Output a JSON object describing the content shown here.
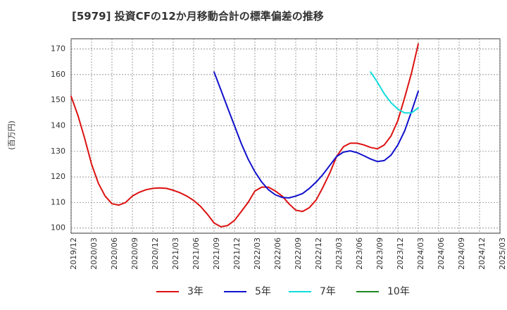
{
  "chart_data": {
    "type": "line",
    "title": "[5979]  投資CFの12か月移動合計の標準偏差の推移",
    "ylabel": "(百万円)",
    "xlabel": "",
    "ylim": [
      98,
      174
    ],
    "yticks": [
      100,
      110,
      120,
      130,
      140,
      150,
      160,
      170
    ],
    "xticks": [
      "2019/12",
      "2020/03",
      "2020/06",
      "2020/09",
      "2020/12",
      "2021/03",
      "2021/06",
      "2021/09",
      "2021/12",
      "2022/03",
      "2022/06",
      "2022/09",
      "2022/12",
      "2023/03",
      "2023/06",
      "2023/09",
      "2023/12",
      "2024/03",
      "2024/06",
      "2024/09",
      "2024/12",
      "2025/03"
    ],
    "grid": true,
    "legend_position": "bottom",
    "series": [
      {
        "name": "3年",
        "color": "#dd1111",
        "x": [
          "2019/12",
          "2020/01",
          "2020/02",
          "2020/03",
          "2020/04",
          "2020/05",
          "2020/06",
          "2020/07",
          "2020/08",
          "2020/09",
          "2020/10",
          "2020/11",
          "2020/12",
          "2021/01",
          "2021/02",
          "2021/03",
          "2021/04",
          "2021/05",
          "2021/06",
          "2021/07",
          "2021/08",
          "2021/09",
          "2021/10",
          "2021/11",
          "2021/12",
          "2022/01",
          "2022/02",
          "2022/03",
          "2022/04",
          "2022/05",
          "2022/06",
          "2022/07",
          "2022/08",
          "2022/09",
          "2022/10",
          "2022/11",
          "2022/12",
          "2023/01",
          "2023/02",
          "2023/03",
          "2023/04",
          "2023/05",
          "2023/06",
          "2023/07",
          "2023/08",
          "2023/09",
          "2023/10",
          "2023/11",
          "2023/12",
          "2024/01",
          "2024/02",
          "2024/03"
        ],
        "values": [
          151.5,
          144,
          135,
          125,
          117.5,
          112.5,
          109.5,
          109,
          110,
          112.5,
          114,
          115,
          115.5,
          115.7,
          115.5,
          114.8,
          113.8,
          112.5,
          110.8,
          108.5,
          105.5,
          102,
          100.5,
          101,
          103,
          106.5,
          110,
          114.5,
          116,
          116,
          114.5,
          112.5,
          109.5,
          107,
          106.5,
          108,
          111,
          116,
          121.5,
          128,
          131.8,
          133.2,
          133.2,
          132.5,
          131.5,
          131,
          132.5,
          136,
          142,
          151,
          160.5,
          172
        ]
      },
      {
        "name": "5年",
        "color": "#1111cc",
        "x": [
          "2021/09",
          "2021/10",
          "2021/11",
          "2021/12",
          "2022/01",
          "2022/02",
          "2022/03",
          "2022/04",
          "2022/05",
          "2022/06",
          "2022/07",
          "2022/08",
          "2022/09",
          "2022/10",
          "2022/11",
          "2022/12",
          "2023/01",
          "2023/02",
          "2023/03",
          "2023/04",
          "2023/05",
          "2023/06",
          "2023/07",
          "2023/08",
          "2023/09",
          "2023/10",
          "2023/11",
          "2023/12",
          "2024/01",
          "2024/02",
          "2024/03"
        ],
        "values": [
          161,
          154,
          147,
          140,
          133,
          127,
          122,
          118,
          115,
          113,
          112,
          111.8,
          112.5,
          113.5,
          115.5,
          118,
          121,
          124.5,
          128,
          129.7,
          130.2,
          129.5,
          128.3,
          127,
          126,
          126.4,
          128.5,
          132.5,
          138,
          145.5,
          153.5
        ]
      },
      {
        "name": "7年",
        "color": "#11dddd",
        "x": [
          "2023/08",
          "2023/09",
          "2023/10",
          "2023/11",
          "2023/12",
          "2024/01",
          "2024/02",
          "2024/03"
        ],
        "values": [
          161,
          157,
          152.5,
          149,
          146.5,
          145,
          145,
          147
        ]
      },
      {
        "name": "10年",
        "color": "#228822",
        "x": [],
        "values": []
      }
    ]
  }
}
